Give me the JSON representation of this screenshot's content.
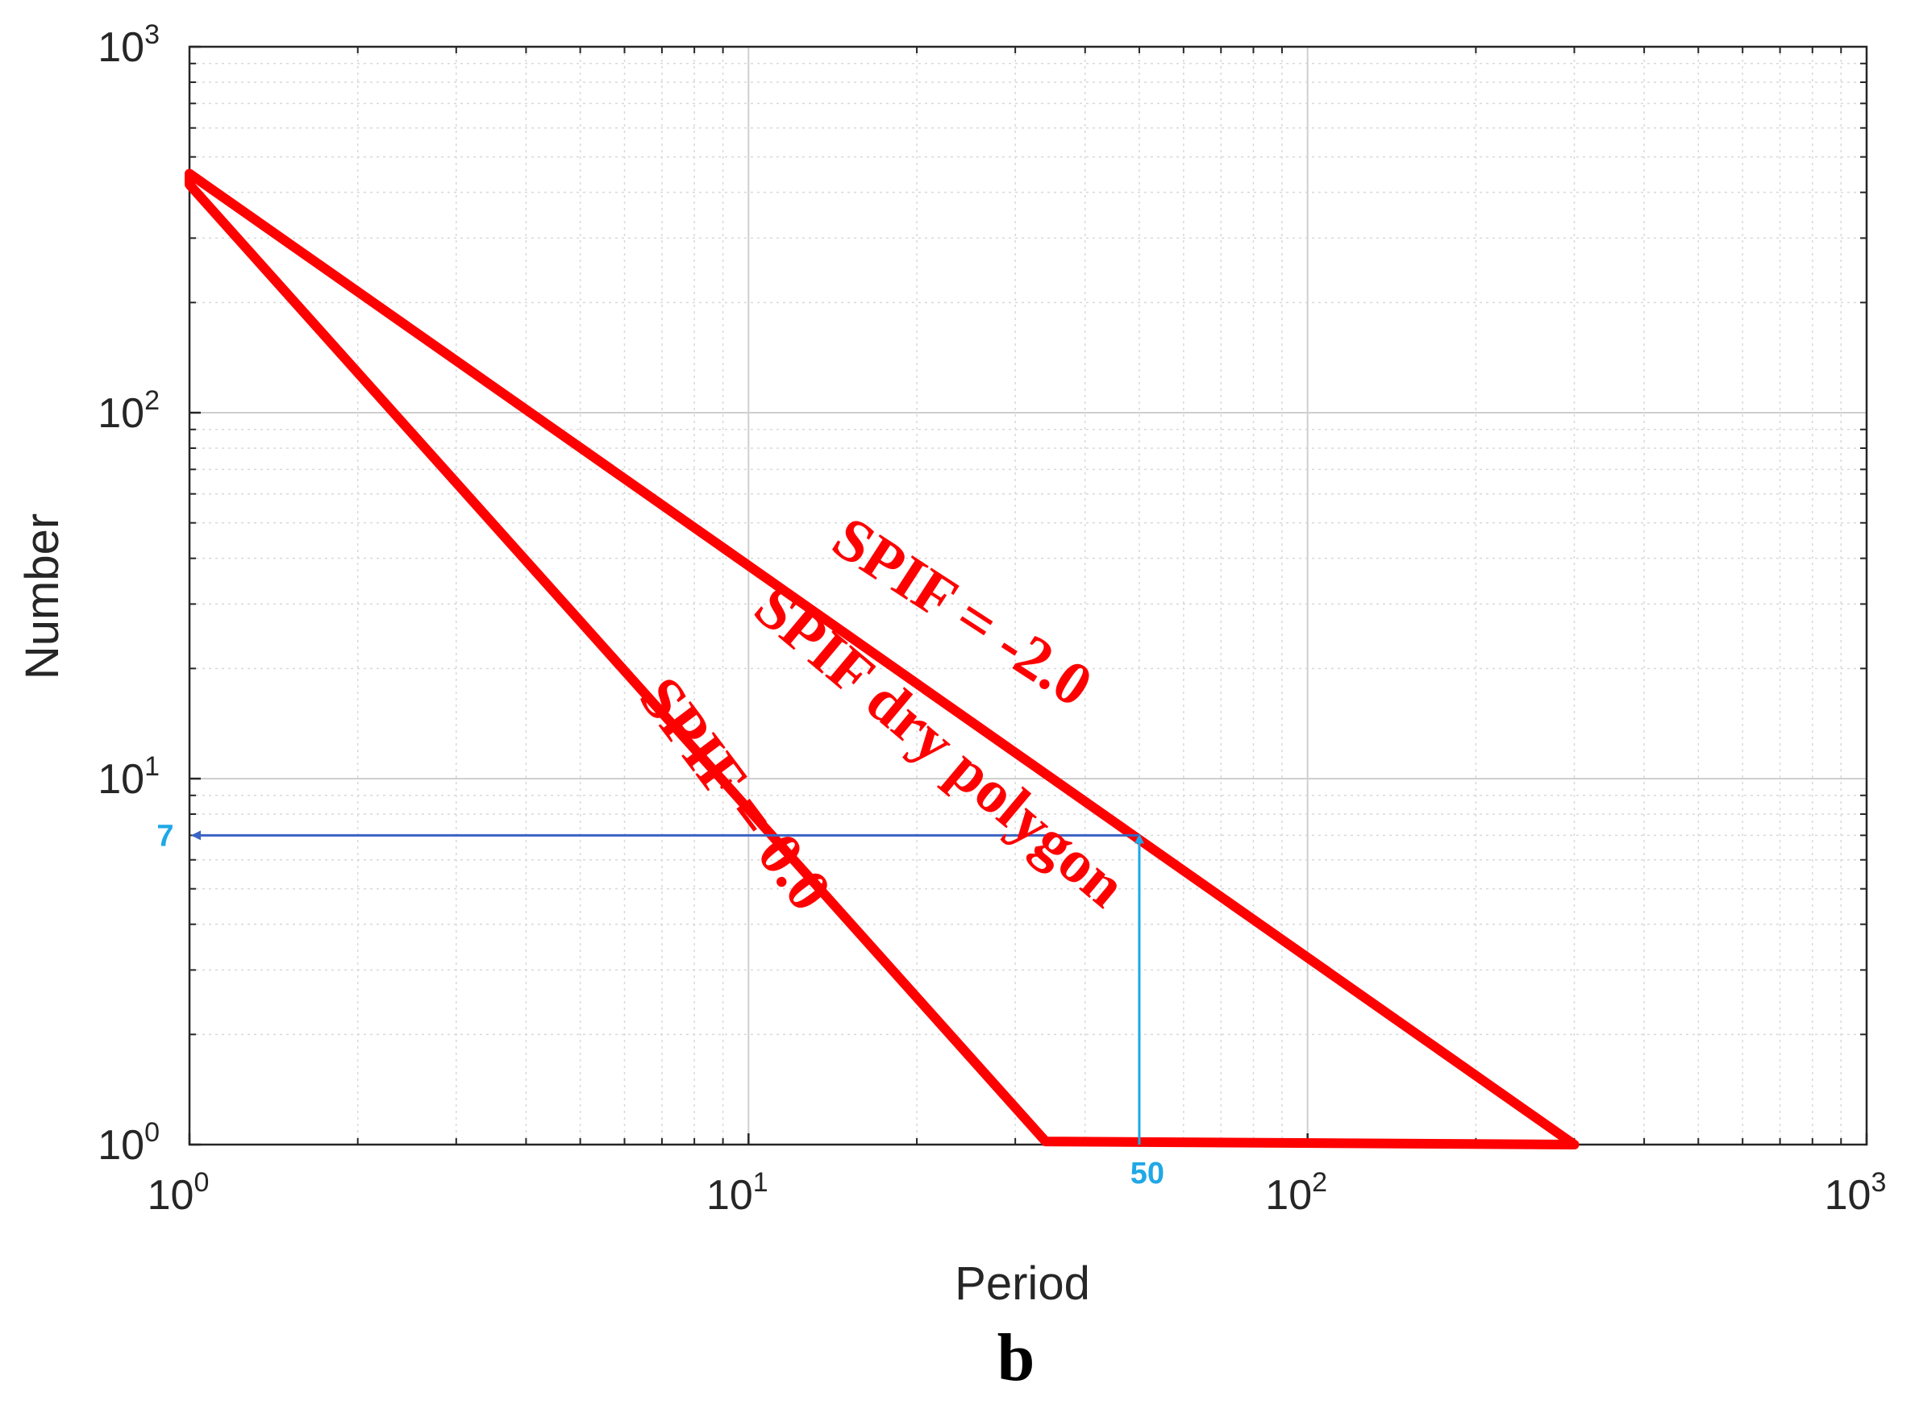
{
  "chart_data": {
    "type": "line",
    "xlabel": "Period",
    "ylabel": "Number",
    "panel_label": "b",
    "xscale": "log",
    "yscale": "log",
    "xlim": [
      1,
      1000
    ],
    "ylim": [
      1,
      1000
    ],
    "grid": true,
    "x_ticks": [
      {
        "base": "10",
        "exp": "0",
        "value": 1
      },
      {
        "base": "10",
        "exp": "1",
        "value": 10
      },
      {
        "base": "10",
        "exp": "2",
        "value": 100
      },
      {
        "base": "10",
        "exp": "3",
        "value": 1000
      }
    ],
    "y_ticks": [
      {
        "base": "10",
        "exp": "0",
        "value": 1
      },
      {
        "base": "10",
        "exp": "1",
        "value": 10
      },
      {
        "base": "10",
        "exp": "2",
        "value": 100
      },
      {
        "base": "10",
        "exp": "3",
        "value": 1000
      }
    ],
    "polygon": {
      "color": "#ff0000",
      "points": [
        [
          1,
          450
        ],
        [
          300,
          1
        ],
        [
          34,
          1.02
        ],
        [
          1,
          420
        ]
      ]
    },
    "annotations": {
      "upper_line": "SPIF = -2.0",
      "middle": "SPIF dry polygon",
      "lower_line": "SPIF = 0.0"
    },
    "reading": {
      "x": 50,
      "y": 7,
      "x_label": "50",
      "y_label": "7",
      "color": "#1fa8e6",
      "arrow_color": "#3b63c4"
    }
  }
}
